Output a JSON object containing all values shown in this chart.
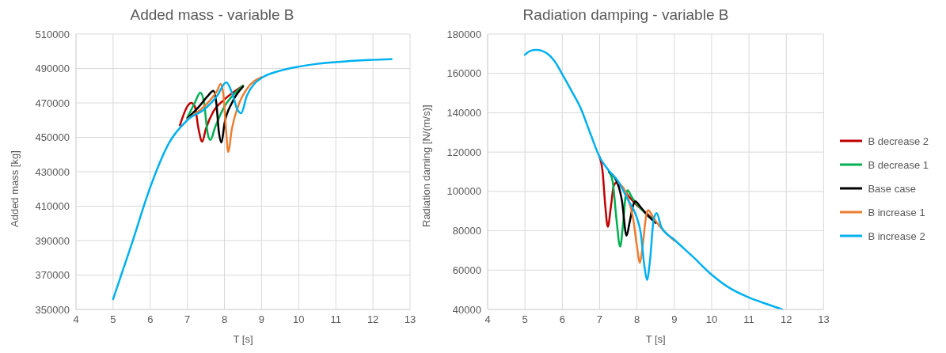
{
  "chart_data": [
    {
      "type": "line",
      "title": "Added mass - variable B",
      "xlabel": "T [s]",
      "ylabel": "Added mass [kg]",
      "xlim": [
        4,
        13
      ],
      "xticks": [
        4,
        5,
        6,
        7,
        8,
        9,
        10,
        11,
        12,
        13
      ],
      "ylim": [
        350000,
        510000
      ],
      "yticks": [
        350000,
        370000,
        390000,
        410000,
        430000,
        450000,
        470000,
        490000,
        510000
      ],
      "grid": true,
      "legend": false,
      "marker": "none",
      "line_style": "solid",
      "series": [
        {
          "color": "#c00000",
          "x": [
            6.8,
            7.0,
            7.1,
            7.2,
            7.3,
            7.4,
            7.5,
            7.7,
            8,
            8.5
          ],
          "values": [
            457000,
            468000,
            470000,
            468000,
            455000,
            447500,
            455000,
            465000,
            472000,
            480000
          ]
        },
        {
          "color": "#00b050",
          "x": [
            7.0,
            7.2,
            7.35,
            7.45,
            7.55,
            7.62,
            7.75,
            8,
            8.3,
            8.5
          ],
          "values": [
            461500,
            470000,
            476000,
            470000,
            452000,
            448500,
            456000,
            468000,
            476000,
            480000
          ]
        },
        {
          "color": "#000000",
          "x": [
            7.0,
            7.3,
            7.55,
            7.7,
            7.78,
            7.85,
            7.92,
            8.0,
            8.2,
            8.5
          ],
          "values": [
            461000,
            467500,
            474000,
            477000,
            470000,
            453000,
            447000,
            458000,
            470000,
            479500
          ]
        },
        {
          "color": "#ed7d31",
          "x": [
            7.0,
            7.5,
            7.8,
            7.9,
            7.97,
            8.05,
            8.1,
            8.2,
            8.4,
            8.6,
            9
          ],
          "values": [
            460500,
            469000,
            477000,
            481000,
            475000,
            452000,
            441500,
            455000,
            470000,
            478000,
            485000
          ]
        },
        {
          "color": "#00b0f0",
          "x": [
            5,
            5.5,
            6,
            6.5,
            7.0,
            7.5,
            7.8,
            8.05,
            8.2,
            8.35,
            8.45,
            8.6,
            8.8,
            9,
            9.5,
            10,
            10.5,
            11,
            11.5,
            12,
            12.5
          ],
          "values": [
            356000,
            388000,
            421000,
            446500,
            460000,
            467000,
            474000,
            482000,
            476000,
            466000,
            464000,
            474000,
            481000,
            484500,
            488700,
            491100,
            492700,
            493700,
            494500,
            495000,
            495400
          ]
        }
      ]
    },
    {
      "type": "line",
      "title": "Radiation damping - variable B",
      "xlabel": "T [s]",
      "ylabel": "Radiation daming [N/(m/s)]",
      "xlim": [
        4,
        13
      ],
      "xticks": [
        4,
        5,
        6,
        7,
        8,
        9,
        10,
        11,
        12,
        13
      ],
      "ylim": [
        40000,
        180000
      ],
      "yticks": [
        40000,
        60000,
        80000,
        100000,
        120000,
        140000,
        160000,
        180000
      ],
      "grid": true,
      "legend": "right",
      "marker": "none",
      "line_style": "solid",
      "series": [
        {
          "name": "B decrease 2",
          "color": "#c00000",
          "x": [
            7,
            7.08,
            7.15,
            7.22,
            7.3,
            7.38,
            7.45,
            7.6,
            7.8,
            8,
            8.25,
            8.5
          ],
          "values": [
            117500,
            110000,
            93000,
            82000,
            92000,
            103000,
            104500,
            102000,
            97000,
            93000,
            89000,
            84500
          ]
        },
        {
          "name": "B decrease 1",
          "color": "#00b050",
          "x": [
            7.25,
            7.35,
            7.45,
            7.55,
            7.62,
            7.7,
            7.75,
            7.85,
            8,
            8.25,
            8.5
          ],
          "values": [
            110000,
            105000,
            86000,
            72000,
            82000,
            98000,
            100500,
            97500,
            93500,
            88500,
            84500
          ]
        },
        {
          "name": "Base case",
          "color": "#000000",
          "x": [
            7.25,
            7.5,
            7.6,
            7.72,
            7.8,
            7.9,
            7.95,
            8.1,
            8.25,
            8.5
          ],
          "values": [
            110000,
            103000,
            95000,
            77500,
            84000,
            93000,
            95000,
            92000,
            88500,
            84000
          ]
        },
        {
          "name": "B increase 1",
          "color": "#ed7d31",
          "x": [
            7.5,
            7.75,
            7.9,
            8.0,
            8.08,
            8.15,
            8.25,
            8.3,
            8.4,
            8.5,
            9
          ],
          "values": [
            104500,
            97000,
            86000,
            72000,
            63700,
            72000,
            88000,
            90500,
            88000,
            85000,
            75000
          ]
        },
        {
          "name": "B increase 2",
          "color": "#00b0f0",
          "x": [
            5,
            5.15,
            5.3,
            5.45,
            5.6,
            5.8,
            6,
            6.25,
            6.5,
            6.75,
            7,
            7.25,
            7.5,
            7.75,
            8,
            8.1,
            8.2,
            8.27,
            8.35,
            8.45,
            8.53,
            8.65,
            9,
            9.5,
            10,
            10.5,
            11,
            11.5,
            11.9
          ],
          "values": [
            169500,
            171500,
            172000,
            171500,
            170000,
            166000,
            159500,
            151000,
            142000,
            129500,
            117500,
            110500,
            105000,
            96000,
            86500,
            79000,
            62000,
            55000,
            65000,
            86000,
            89000,
            82000,
            75500,
            66800,
            57700,
            50700,
            46100,
            42600,
            40000
          ]
        }
      ]
    }
  ]
}
